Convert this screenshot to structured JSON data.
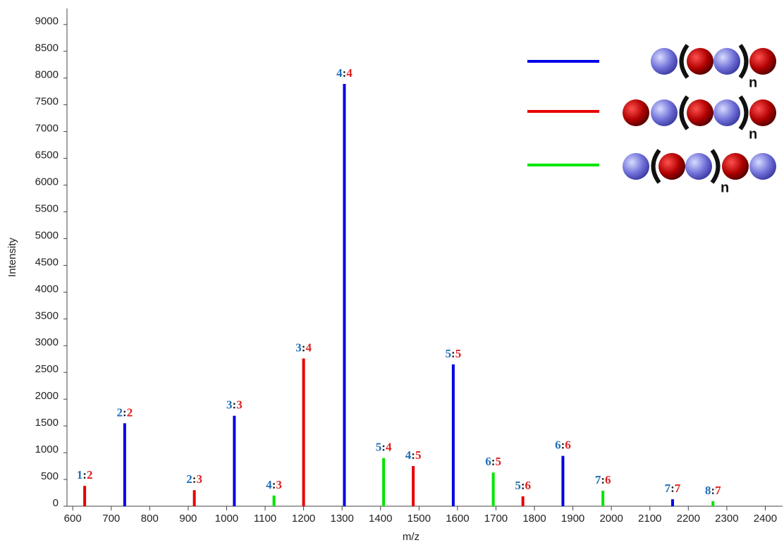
{
  "chart_data": {
    "type": "bar",
    "x_label": "m/z",
    "y_label": "Intensity",
    "xlim": [
      585,
      2445
    ],
    "ylim": [
      0,
      9300
    ],
    "xticks": [
      600,
      700,
      800,
      900,
      1000,
      1100,
      1200,
      1300,
      1400,
      1500,
      1600,
      1700,
      1800,
      1900,
      2000,
      2100,
      2200,
      2300,
      2400
    ],
    "yticks": [
      0,
      500,
      1000,
      1500,
      2000,
      2500,
      3000,
      3500,
      4000,
      4500,
      5000,
      5500,
      6000,
      6500,
      7000,
      7500,
      8000,
      8500,
      9000
    ],
    "series": [
      {
        "color": "#0000e6",
        "x": [
          735,
          1020,
          1306,
          1589,
          1874,
          2159
        ],
        "values": [
          1550,
          1690,
          7890,
          2650,
          940,
          130
        ],
        "labels": [
          "2:2",
          "3:3",
          "4:4",
          "5:5",
          "6:6",
          "7:7"
        ]
      },
      {
        "color": "#e60000",
        "x": [
          631,
          916,
          1200,
          1485,
          1770
        ],
        "values": [
          380,
          300,
          2760,
          750,
          185
        ],
        "labels": [
          "1:2",
          "2:3",
          "3:4",
          "4:5",
          "5:6"
        ]
      },
      {
        "color": "#00e600",
        "x": [
          1123,
          1408,
          1693,
          1978,
          2264
        ],
        "values": [
          200,
          900,
          630,
          290,
          95
        ],
        "labels": [
          "4:3",
          "5:4",
          "6:5",
          "7:6",
          "8:7"
        ]
      }
    ],
    "legend_subscripts": [
      "n",
      "n",
      "n"
    ]
  }
}
